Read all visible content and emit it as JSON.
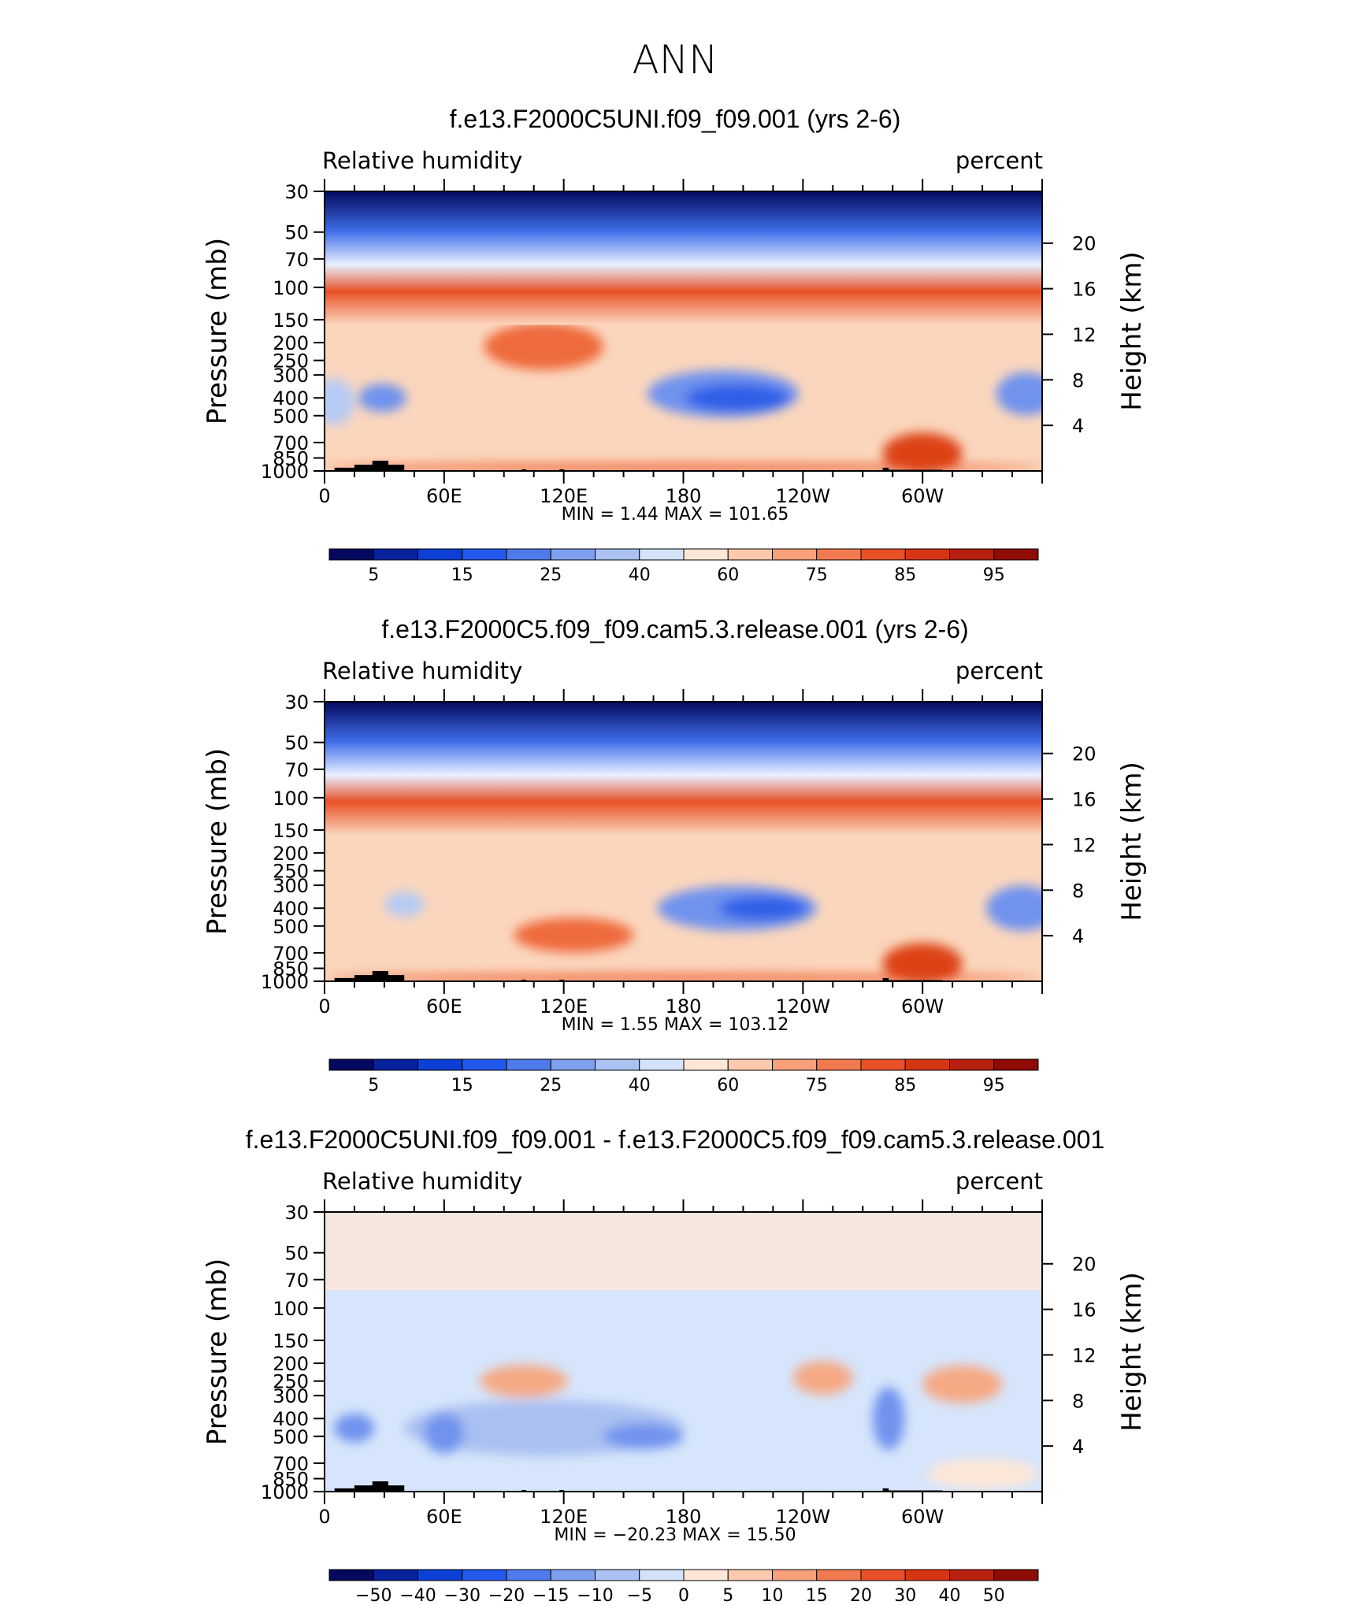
{
  "page_title": "ANN",
  "chart_data": [
    {
      "type": "contour",
      "title": "f.e13.F2000C5UNI.f09_f09.001 (yrs 2-6)",
      "variable_label": "Relative humidity",
      "units_label": "percent",
      "ylabel": "Pressure (mb)",
      "ylabel_right": "Height (km)",
      "x_ticks": [
        "0",
        "60E",
        "120E",
        "180",
        "120W",
        "60W"
      ],
      "x_range": [
        0,
        360
      ],
      "y_ticks": [
        "30",
        "50",
        "70",
        "100",
        "150",
        "200",
        "250",
        "300",
        "400",
        "500",
        "700",
        "850",
        "1000"
      ],
      "y_values": [
        30,
        50,
        70,
        100,
        150,
        200,
        250,
        300,
        400,
        500,
        700,
        850,
        1000
      ],
      "y_ticks_right": [
        "20",
        "16",
        "12",
        "8",
        "4"
      ],
      "y_right_values": [
        20,
        16,
        12,
        8,
        4
      ],
      "stats_text": "MIN =     1.44   MAX =  101.65",
      "min": 1.44,
      "max": 101.65,
      "colorbar_labels": [
        "5",
        "15",
        "25",
        "40",
        "60",
        "75",
        "85",
        "95"
      ],
      "colorbar_colors": [
        "#04095e",
        "#08219c",
        "#0c3fd3",
        "#2358ec",
        "#4f7aec",
        "#7fa0ee",
        "#abc2f2",
        "#d4e3f9",
        "#fde6d6",
        "#fbc9ad",
        "#f7a07a",
        "#f27a51",
        "#e85128",
        "#d63514",
        "#b7200e",
        "#8e0b06"
      ],
      "background_level": "light-orange",
      "blobs": [
        {
          "x": 200,
          "p": 380,
          "rx": 38,
          "rp": 110,
          "level": "blue-mid"
        },
        {
          "x": 207,
          "p": 400,
          "rx": 26,
          "rp": 70,
          "level": "blue-strong"
        },
        {
          "x": 29,
          "p": 400,
          "rx": 12,
          "rp": 70,
          "level": "blue-mid"
        },
        {
          "x": 352,
          "p": 380,
          "rx": 15,
          "rp": 100,
          "level": "blue-mid"
        },
        {
          "x": 5,
          "p": 420,
          "rx": 10,
          "rp": 120,
          "level": "blue-light"
        },
        {
          "x": 110,
          "p": 210,
          "rx": 30,
          "rp": 60,
          "level": "orange-mid"
        },
        {
          "x": 180,
          "p": 960,
          "rx": 180,
          "rp": 60,
          "level": "orange-mid"
        },
        {
          "x": 300,
          "p": 800,
          "rx": 20,
          "rp": 200,
          "level": "orange-strong"
        }
      ]
    },
    {
      "type": "contour",
      "title": "f.e13.F2000C5.f09_f09.cam5.3.release.001 (yrs 2-6)",
      "variable_label": "Relative humidity",
      "units_label": "percent",
      "ylabel": "Pressure (mb)",
      "ylabel_right": "Height (km)",
      "x_ticks": [
        "0",
        "60E",
        "120E",
        "180",
        "120W",
        "60W"
      ],
      "x_range": [
        0,
        360
      ],
      "y_ticks": [
        "30",
        "50",
        "70",
        "100",
        "150",
        "200",
        "250",
        "300",
        "400",
        "500",
        "700",
        "850",
        "1000"
      ],
      "y_values": [
        30,
        50,
        70,
        100,
        150,
        200,
        250,
        300,
        400,
        500,
        700,
        850,
        1000
      ],
      "y_ticks_right": [
        "20",
        "16",
        "12",
        "8",
        "4"
      ],
      "y_right_values": [
        20,
        16,
        12,
        8,
        4
      ],
      "stats_text": "MIN =     1.55   MAX =  103.12",
      "min": 1.55,
      "max": 103.12,
      "colorbar_labels": [
        "5",
        "15",
        "25",
        "40",
        "60",
        "75",
        "85",
        "95"
      ],
      "colorbar_colors": [
        "#04095e",
        "#08219c",
        "#0c3fd3",
        "#2358ec",
        "#4f7aec",
        "#7fa0ee",
        "#abc2f2",
        "#d4e3f9",
        "#fde6d6",
        "#fbc9ad",
        "#f7a07a",
        "#f27a51",
        "#e85128",
        "#d63514",
        "#b7200e",
        "#8e0b06"
      ],
      "background_level": "light-orange",
      "blobs": [
        {
          "x": 207,
          "p": 400,
          "rx": 40,
          "rp": 110,
          "level": "blue-mid"
        },
        {
          "x": 220,
          "p": 400,
          "rx": 22,
          "rp": 60,
          "level": "blue-strong"
        },
        {
          "x": 40,
          "p": 380,
          "rx": 10,
          "rp": 60,
          "level": "blue-light"
        },
        {
          "x": 350,
          "p": 400,
          "rx": 18,
          "rp": 110,
          "level": "blue-mid"
        },
        {
          "x": 125,
          "p": 560,
          "rx": 30,
          "rp": 120,
          "level": "orange-mid"
        },
        {
          "x": 180,
          "p": 960,
          "rx": 180,
          "rp": 60,
          "level": "orange-mid"
        },
        {
          "x": 300,
          "p": 800,
          "rx": 20,
          "rp": 200,
          "level": "orange-strong"
        }
      ]
    },
    {
      "type": "contour",
      "title": "f.e13.F2000C5UNI.f09_f09.001 - f.e13.F2000C5.f09_f09.cam5.3.release.001",
      "variable_label": "Relative humidity",
      "units_label": "percent",
      "ylabel": "Pressure (mb)",
      "ylabel_right": "Height (km)",
      "x_ticks": [
        "0",
        "60E",
        "120E",
        "180",
        "120W",
        "60W"
      ],
      "x_range": [
        0,
        360
      ],
      "y_ticks": [
        "30",
        "50",
        "70",
        "100",
        "150",
        "200",
        "250",
        "300",
        "400",
        "500",
        "700",
        "850",
        "1000"
      ],
      "y_values": [
        30,
        50,
        70,
        100,
        150,
        200,
        250,
        300,
        400,
        500,
        700,
        850,
        1000
      ],
      "y_ticks_right": [
        "20",
        "16",
        "12",
        "8",
        "4"
      ],
      "y_right_values": [
        20,
        16,
        12,
        8,
        4
      ],
      "stats_text": "MIN =  −20.23   MAX =    15.50",
      "min": -20.23,
      "max": 15.5,
      "colorbar_labels": [
        "−50",
        "−40",
        "−30",
        "−20",
        "−15",
        "−10",
        "−5",
        "0",
        "5",
        "10",
        "15",
        "20",
        "30",
        "40",
        "50"
      ],
      "colorbar_colors": [
        "#04095e",
        "#08219c",
        "#0c3fd3",
        "#2358ec",
        "#4f7aec",
        "#7fa0ee",
        "#abc2f2",
        "#d4e3f9",
        "#fde6d6",
        "#fbc9ad",
        "#f7a07a",
        "#f27a51",
        "#e85128",
        "#d63514",
        "#b7200e",
        "#8e0b06"
      ],
      "background_level": "light-blue",
      "blobs": [
        {
          "x": 110,
          "p": 450,
          "rx": 70,
          "rp": 150,
          "level": "blue-light2"
        },
        {
          "x": 160,
          "p": 500,
          "rx": 20,
          "rp": 80,
          "level": "blue-mid"
        },
        {
          "x": 60,
          "p": 480,
          "rx": 10,
          "rp": 120,
          "level": "blue-mid"
        },
        {
          "x": 15,
          "p": 450,
          "rx": 10,
          "rp": 80,
          "level": "blue-mid"
        },
        {
          "x": 283,
          "p": 400,
          "rx": 8,
          "rp": 150,
          "level": "blue-mid"
        },
        {
          "x": 100,
          "p": 250,
          "rx": 22,
          "rp": 50,
          "level": "orange-light"
        },
        {
          "x": 250,
          "p": 240,
          "rx": 15,
          "rp": 50,
          "level": "orange-light"
        },
        {
          "x": 320,
          "p": 260,
          "rx": 20,
          "rp": 60,
          "level": "orange-light"
        },
        {
          "x": 330,
          "p": 800,
          "rx": 28,
          "rp": 150,
          "level": "orange-pale"
        }
      ]
    }
  ]
}
